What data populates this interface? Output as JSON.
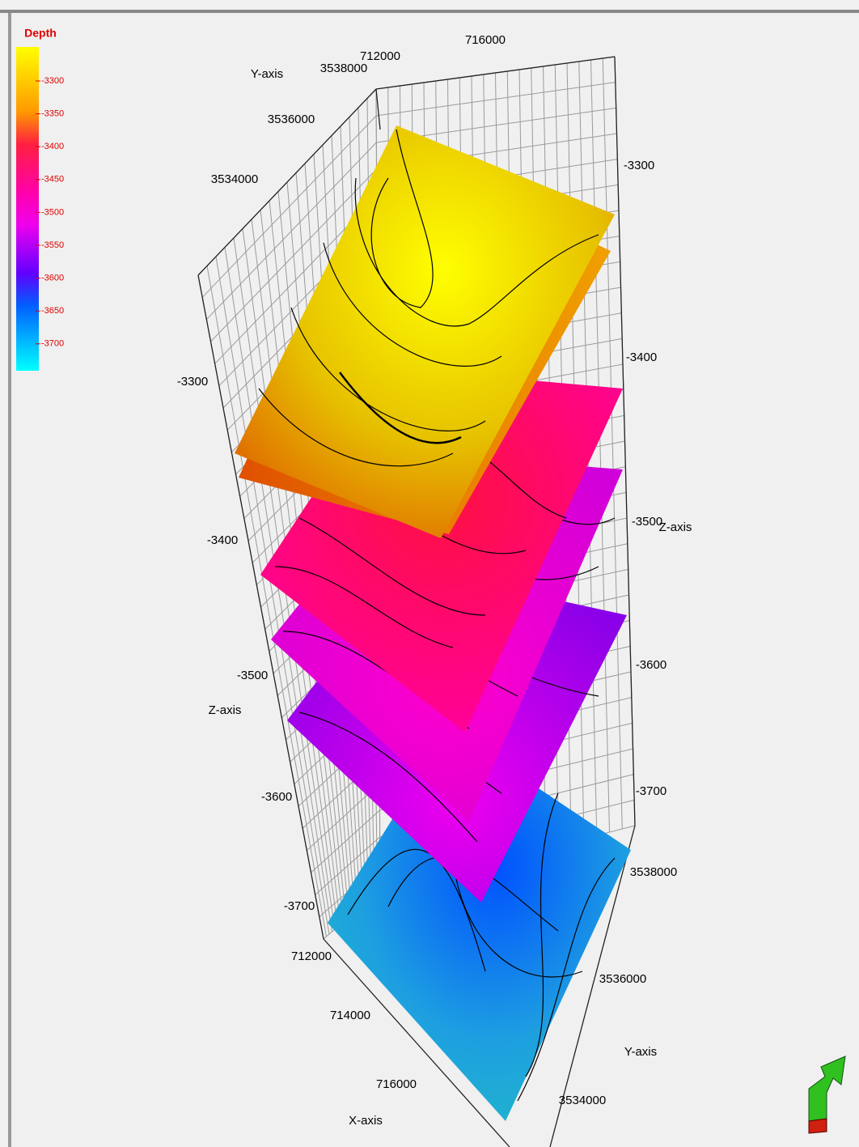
{
  "legend": {
    "title": "Depth",
    "ticks": [
      "-3300",
      "-3350",
      "-3400",
      "-3450",
      "-3500",
      "-3550",
      "-3600",
      "-3650",
      "-3700"
    ]
  },
  "back_axes": {
    "y_label": "Y-axis",
    "y_ticks": [
      "3538000",
      "3536000",
      "3534000"
    ],
    "x_ticks": [
      "712000",
      "716000"
    ]
  },
  "left_z": {
    "label": "Z-axis",
    "ticks": [
      "-3300",
      "-3400",
      "-3500",
      "-3600",
      "-3700"
    ]
  },
  "right_z": {
    "label": "Z-axis",
    "ticks": [
      "-3300",
      "-3400",
      "-3500",
      "-3600",
      "-3700"
    ]
  },
  "front_axes": {
    "y_label": "Y-axis",
    "y_ticks": [
      "3538000",
      "3536000",
      "3534000"
    ],
    "x_label": "X-axis",
    "x_ticks": [
      "712000",
      "714000",
      "716000"
    ]
  }
}
